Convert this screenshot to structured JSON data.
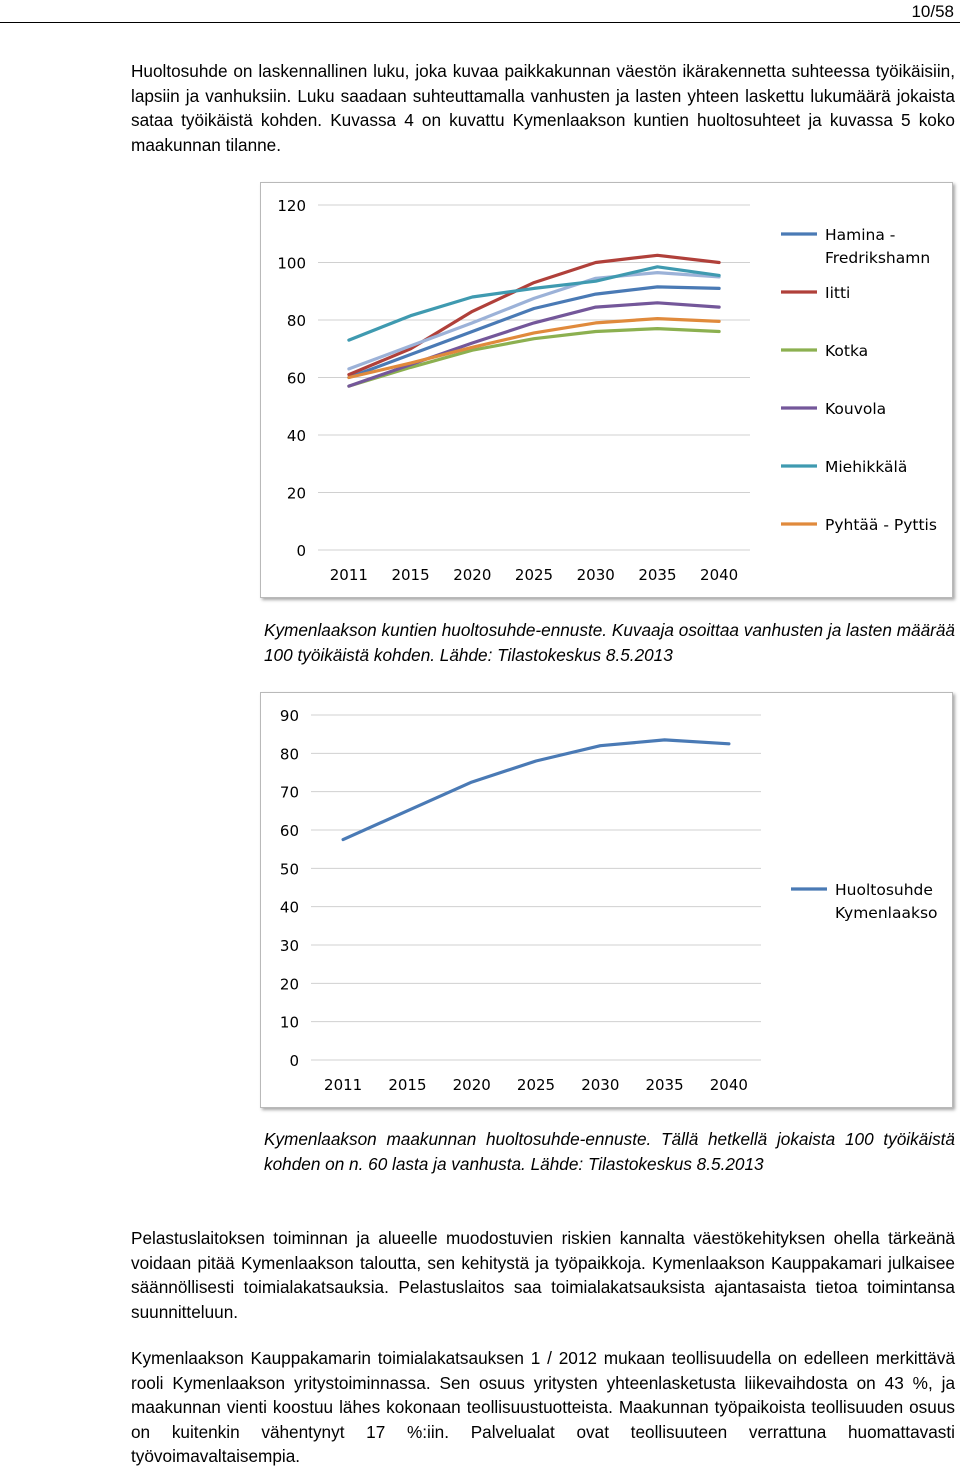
{
  "header": {
    "page_number": "10/58"
  },
  "paragraphs": {
    "intro": "Huoltosuhde on laskennallinen luku, joka kuvaa paikkakunnan väestön ikärakennetta suhteessa työikäisiin, lapsiin ja vanhuksiin. Luku saadaan suhteuttamalla vanhusten ja lasten yhteen laskettu lukumäärä jokaista sataa työikäistä kohden. Kuvassa 4 on kuvattu Kymenlaakson kuntien huoltosuhteet ja kuvassa 5 koko maakunnan tilanne.",
    "rescue": "Pelastuslaitoksen toiminnan ja alueelle muodostuvien riskien kannalta väestökehityksen ohella tärkeänä voidaan pitää Kymenlaakson taloutta, sen kehitystä ja työpaikkoja. Kymenlaakson Kauppakamari julkaisee säännöllisesti toimialakatsauksia. Pelastuslaitos saa toimialakatsauksista ajantasaista tietoa toimintansa suunnitteluun.",
    "industry": "Kymenlaakson Kauppakamarin toimialakatsauksen 1 / 2012 mukaan teollisuudella on edelleen merkittävä rooli Kymenlaakson yritystoiminnassa. Sen osuus yritysten yhteenlasketusta liikevaihdosta on 43 %, ja maakunnan vienti koostuu lähes kokonaan teollisuustuotteista. Maakunnan työpaikoista teollisuuden osuus on kuitenkin vähentynyt 17 %:iin. Palvelualat ovat teollisuuteen verrattuna huomattavasti työvoimavaltaisempia."
  },
  "captions": {
    "figure4": "Kymenlaakson kuntien huoltosuhde-ennuste. Kuvaaja osoittaa vanhusten ja lasten määrää 100 työikäistä kohden. Lähde: Tilastokeskus 8.5.2013",
    "figure5": "Kymenlaakson maakunnan huoltosuhde-ennuste. Tällä hetkellä jokaista 100 työikäistä kohden on n. 60 lasta ja vanhusta. Lähde: Tilastokeskus 8.5.2013"
  },
  "chart_data": [
    {
      "type": "line",
      "x": [
        "2011",
        "2015",
        "2020",
        "2025",
        "2030",
        "2035",
        "2040"
      ],
      "ylim": [
        0,
        120
      ],
      "yticks": [
        0,
        20,
        40,
        60,
        80,
        100,
        120
      ],
      "grid": true,
      "legend": "right",
      "series": [
        {
          "name": "Hamina - Fredrikshamn",
          "color": "#4a7ab5",
          "values": [
            60,
            68,
            76,
            84,
            89,
            91.5,
            91
          ]
        },
        {
          "name": "Iitti",
          "color": "#b0403a",
          "values": [
            61,
            70,
            83,
            93,
            100,
            102.5,
            100
          ]
        },
        {
          "name": "",
          "color": "#9cb2d8",
          "values": [
            63,
            71,
            79,
            87.5,
            94.5,
            96.5,
            95
          ]
        },
        {
          "name": "Kotka",
          "color": "#8cb050",
          "values": [
            57,
            63.5,
            69.5,
            73.5,
            76,
            77,
            76
          ]
        },
        {
          "name": "Kouvola",
          "color": "#74579a",
          "values": [
            57,
            64.5,
            72,
            79,
            84.5,
            86,
            84.5
          ]
        },
        {
          "name": "Miehikkälä",
          "color": "#3f9ab0",
          "values": [
            73,
            81.5,
            88,
            91,
            93.5,
            98.5,
            95.5
          ]
        },
        {
          "name": "Pyhtää - Pyttis",
          "color": "#e08a3c",
          "values": [
            60,
            65,
            70.5,
            75.5,
            79,
            80.5,
            79.5
          ]
        }
      ]
    },
    {
      "type": "line",
      "x": [
        "2011",
        "2015",
        "2020",
        "2025",
        "2030",
        "2035",
        "2040"
      ],
      "ylim": [
        0,
        90
      ],
      "yticks": [
        0,
        10,
        20,
        30,
        40,
        50,
        60,
        70,
        80,
        90
      ],
      "grid": true,
      "legend": "right",
      "series": [
        {
          "name": "Huoltosuhde Kymenlaakso",
          "color": "#4a7ab5",
          "values": [
            57.5,
            65,
            72.5,
            78,
            82,
            83.5,
            82.5
          ]
        }
      ]
    }
  ]
}
